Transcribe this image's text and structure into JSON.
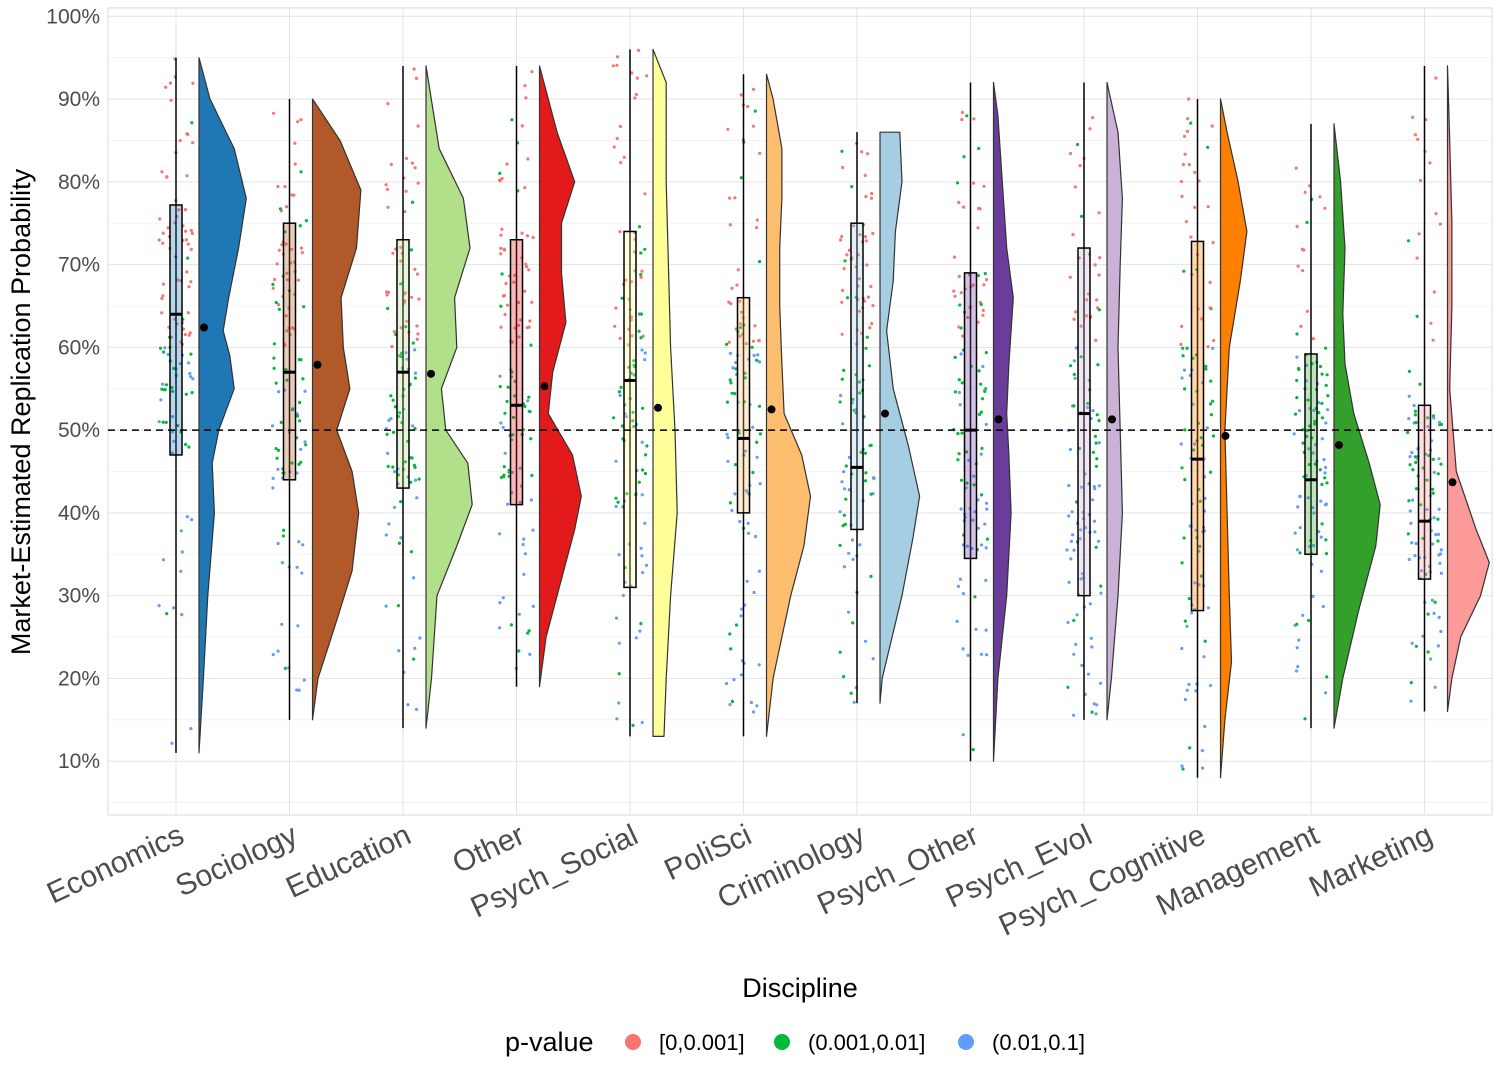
{
  "chart_data": {
    "type": "raincloud",
    "xlabel": "Discipline",
    "ylabel": "Market-Estimated Replication Probability",
    "ylim": [
      0.035,
      1.01
    ],
    "y_ticks": [
      0.1,
      0.2,
      0.3,
      0.4,
      0.5,
      0.6,
      0.7,
      0.8,
      0.9,
      1.0
    ],
    "y_tick_labels": [
      "10%",
      "20%",
      "30%",
      "40%",
      "50%",
      "60%",
      "70%",
      "80%",
      "90%",
      "100%"
    ],
    "reference_line": 0.5,
    "grid": true,
    "legend": {
      "title": "p-value",
      "position": "bottom",
      "entries": [
        {
          "label": "[0,0.001]",
          "color": "#F8766D"
        },
        {
          "label": "(0.001,0.01]",
          "color": "#00BA38"
        },
        {
          "label": "(0.01,0.1]",
          "color": "#619CFF"
        }
      ]
    },
    "categories": [
      "Economics",
      "Sociology",
      "Education",
      "Other",
      "Psych_Social",
      "PoliSci",
      "Criminology",
      "Psych_Other",
      "Psych_Evol",
      "Psych_Cognitive",
      "Management",
      "Marketing"
    ],
    "series": [
      {
        "category": "Economics",
        "color": "#1F78B4",
        "whisker_low": 0.11,
        "q1": 0.47,
        "median": 0.64,
        "q3": 0.772,
        "whisker_high": 0.95,
        "mean": 0.624,
        "density": [
          [
            0.11,
            0.0
          ],
          [
            0.2,
            0.04
          ],
          [
            0.3,
            0.08
          ],
          [
            0.4,
            0.14
          ],
          [
            0.46,
            0.12
          ],
          [
            0.5,
            0.18
          ],
          [
            0.55,
            0.32
          ],
          [
            0.59,
            0.28
          ],
          [
            0.62,
            0.22
          ],
          [
            0.66,
            0.27
          ],
          [
            0.72,
            0.36
          ],
          [
            0.78,
            0.43
          ],
          [
            0.84,
            0.32
          ],
          [
            0.9,
            0.1
          ],
          [
            0.95,
            0.0
          ]
        ]
      },
      {
        "category": "Sociology",
        "color": "#B15928",
        "whisker_low": 0.15,
        "q1": 0.44,
        "median": 0.57,
        "q3": 0.75,
        "whisker_high": 0.9,
        "mean": 0.579,
        "density": [
          [
            0.15,
            0.0
          ],
          [
            0.2,
            0.05
          ],
          [
            0.27,
            0.22
          ],
          [
            0.33,
            0.36
          ],
          [
            0.4,
            0.42
          ],
          [
            0.45,
            0.36
          ],
          [
            0.5,
            0.22
          ],
          [
            0.55,
            0.34
          ],
          [
            0.6,
            0.28
          ],
          [
            0.66,
            0.26
          ],
          [
            0.72,
            0.4
          ],
          [
            0.79,
            0.44
          ],
          [
            0.85,
            0.25
          ],
          [
            0.9,
            0.0
          ]
        ]
      },
      {
        "category": "Education",
        "color": "#B2DF8A",
        "whisker_low": 0.14,
        "q1": 0.43,
        "median": 0.57,
        "q3": 0.73,
        "whisker_high": 0.94,
        "mean": 0.568,
        "density": [
          [
            0.14,
            0.0
          ],
          [
            0.2,
            0.05
          ],
          [
            0.3,
            0.1
          ],
          [
            0.36,
            0.28
          ],
          [
            0.41,
            0.42
          ],
          [
            0.46,
            0.38
          ],
          [
            0.5,
            0.18
          ],
          [
            0.55,
            0.14
          ],
          [
            0.6,
            0.28
          ],
          [
            0.66,
            0.26
          ],
          [
            0.72,
            0.4
          ],
          [
            0.78,
            0.34
          ],
          [
            0.84,
            0.12
          ],
          [
            0.94,
            0.0
          ]
        ]
      },
      {
        "category": "Other",
        "color": "#E31A1C",
        "whisker_low": 0.19,
        "q1": 0.41,
        "median": 0.53,
        "q3": 0.73,
        "whisker_high": 0.94,
        "mean": 0.553,
        "density": [
          [
            0.19,
            0.0
          ],
          [
            0.25,
            0.06
          ],
          [
            0.32,
            0.2
          ],
          [
            0.38,
            0.32
          ],
          [
            0.42,
            0.38
          ],
          [
            0.47,
            0.3
          ],
          [
            0.52,
            0.08
          ],
          [
            0.57,
            0.12
          ],
          [
            0.63,
            0.24
          ],
          [
            0.69,
            0.2
          ],
          [
            0.75,
            0.2
          ],
          [
            0.8,
            0.32
          ],
          [
            0.86,
            0.16
          ],
          [
            0.94,
            0.0
          ]
        ]
      },
      {
        "category": "Psych_Social",
        "color": "#FFFF99",
        "whisker_low": 0.13,
        "q1": 0.31,
        "median": 0.56,
        "q3": 0.74,
        "whisker_high": 0.96,
        "mean": 0.527,
        "density": [
          [
            0.13,
            0.1
          ],
          [
            0.2,
            0.12
          ],
          [
            0.3,
            0.16
          ],
          [
            0.4,
            0.22
          ],
          [
            0.5,
            0.2
          ],
          [
            0.6,
            0.16
          ],
          [
            0.7,
            0.14
          ],
          [
            0.8,
            0.12
          ],
          [
            0.88,
            0.12
          ],
          [
            0.92,
            0.12
          ],
          [
            0.96,
            0.0
          ]
        ]
      },
      {
        "category": "PoliSci",
        "color": "#FDBF6F",
        "whisker_low": 0.13,
        "q1": 0.4,
        "median": 0.49,
        "q3": 0.66,
        "whisker_high": 0.93,
        "mean": 0.525,
        "density": [
          [
            0.13,
            0.0
          ],
          [
            0.2,
            0.06
          ],
          [
            0.3,
            0.22
          ],
          [
            0.36,
            0.34
          ],
          [
            0.42,
            0.4
          ],
          [
            0.47,
            0.32
          ],
          [
            0.52,
            0.16
          ],
          [
            0.58,
            0.14
          ],
          [
            0.65,
            0.12
          ],
          [
            0.72,
            0.12
          ],
          [
            0.78,
            0.14
          ],
          [
            0.84,
            0.14
          ],
          [
            0.9,
            0.06
          ],
          [
            0.93,
            0.0
          ]
        ]
      },
      {
        "category": "Criminology",
        "color": "#A6CEE3",
        "whisker_low": 0.17,
        "q1": 0.38,
        "median": 0.455,
        "q3": 0.75,
        "whisker_high": 0.86,
        "mean": 0.52,
        "density": [
          [
            0.17,
            0.0
          ],
          [
            0.2,
            0.02
          ],
          [
            0.3,
            0.2
          ],
          [
            0.37,
            0.3
          ],
          [
            0.42,
            0.36
          ],
          [
            0.48,
            0.26
          ],
          [
            0.55,
            0.12
          ],
          [
            0.62,
            0.06
          ],
          [
            0.68,
            0.12
          ],
          [
            0.74,
            0.14
          ],
          [
            0.8,
            0.2
          ],
          [
            0.86,
            0.18
          ],
          [
            0.86,
            0.0
          ]
        ]
      },
      {
        "category": "Psych_Other",
        "color": "#6A3D9A",
        "whisker_low": 0.1,
        "q1": 0.345,
        "median": 0.5,
        "q3": 0.69,
        "whisker_high": 0.92,
        "mean": 0.513,
        "density": [
          [
            0.1,
            0.0
          ],
          [
            0.2,
            0.04
          ],
          [
            0.3,
            0.12
          ],
          [
            0.4,
            0.16
          ],
          [
            0.47,
            0.14
          ],
          [
            0.52,
            0.12
          ],
          [
            0.58,
            0.14
          ],
          [
            0.66,
            0.18
          ],
          [
            0.72,
            0.12
          ],
          [
            0.8,
            0.08
          ],
          [
            0.88,
            0.04
          ],
          [
            0.92,
            0.0
          ]
        ]
      },
      {
        "category": "Psych_Evol",
        "color": "#CAB2D6",
        "whisker_low": 0.15,
        "q1": 0.3,
        "median": 0.52,
        "q3": 0.72,
        "whisker_high": 0.92,
        "mean": 0.513,
        "density": [
          [
            0.15,
            0.0
          ],
          [
            0.2,
            0.04
          ],
          [
            0.3,
            0.1
          ],
          [
            0.4,
            0.14
          ],
          [
            0.5,
            0.12
          ],
          [
            0.6,
            0.1
          ],
          [
            0.7,
            0.12
          ],
          [
            0.78,
            0.14
          ],
          [
            0.86,
            0.1
          ],
          [
            0.92,
            0.0
          ]
        ]
      },
      {
        "category": "Psych_Cognitive",
        "color": "#FF7F00",
        "whisker_low": 0.08,
        "q1": 0.282,
        "median": 0.465,
        "q3": 0.728,
        "whisker_high": 0.9,
        "mean": 0.493,
        "density": [
          [
            0.08,
            0.0
          ],
          [
            0.15,
            0.04
          ],
          [
            0.22,
            0.1
          ],
          [
            0.3,
            0.08
          ],
          [
            0.4,
            0.06
          ],
          [
            0.5,
            0.04
          ],
          [
            0.6,
            0.08
          ],
          [
            0.68,
            0.18
          ],
          [
            0.74,
            0.24
          ],
          [
            0.8,
            0.16
          ],
          [
            0.86,
            0.06
          ],
          [
            0.9,
            0.0
          ]
        ]
      },
      {
        "category": "Management",
        "color": "#33A02C",
        "whisker_low": 0.14,
        "q1": 0.35,
        "median": 0.44,
        "q3": 0.592,
        "whisker_high": 0.87,
        "mean": 0.482,
        "density": [
          [
            0.14,
            0.0
          ],
          [
            0.2,
            0.08
          ],
          [
            0.28,
            0.22
          ],
          [
            0.36,
            0.38
          ],
          [
            0.41,
            0.42
          ],
          [
            0.46,
            0.32
          ],
          [
            0.52,
            0.18
          ],
          [
            0.58,
            0.1
          ],
          [
            0.64,
            0.08
          ],
          [
            0.72,
            0.1
          ],
          [
            0.8,
            0.06
          ],
          [
            0.87,
            0.0
          ]
        ]
      },
      {
        "category": "Marketing",
        "color": "#FB9A99",
        "whisker_low": 0.16,
        "q1": 0.32,
        "median": 0.39,
        "q3": 0.53,
        "whisker_high": 0.94,
        "mean": 0.437,
        "density": [
          [
            0.16,
            0.0
          ],
          [
            0.2,
            0.04
          ],
          [
            0.25,
            0.12
          ],
          [
            0.3,
            0.3
          ],
          [
            0.34,
            0.38
          ],
          [
            0.38,
            0.26
          ],
          [
            0.45,
            0.08
          ],
          [
            0.55,
            0.02
          ],
          [
            0.65,
            0.04
          ],
          [
            0.75,
            0.04
          ],
          [
            0.85,
            0.02
          ],
          [
            0.94,
            0.0
          ]
        ]
      }
    ]
  }
}
